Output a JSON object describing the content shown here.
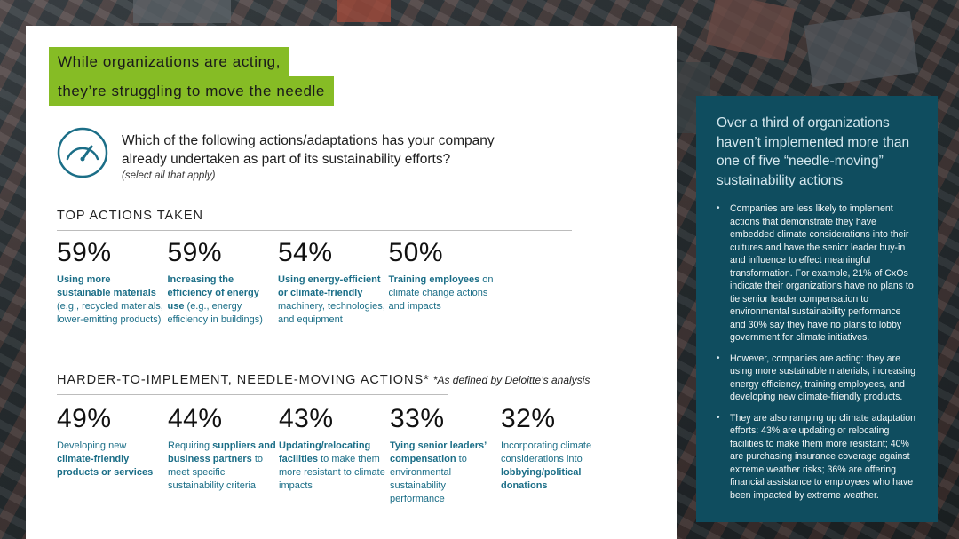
{
  "headline": {
    "line1": "While organizations are acting,",
    "line2": "they’re struggling to move the needle"
  },
  "question": {
    "icon": "gauge-icon",
    "text": "Which of the following actions/adaptations has your company already undertaken as part of its sustainability efforts?",
    "note": "(select all that apply)"
  },
  "top_actions": {
    "title": "TOP ACTIONS TAKEN",
    "items": [
      {
        "pct": "59%",
        "value": 59,
        "desc": [
          {
            "t": "Using more sustainable materials",
            "b": true
          },
          {
            "t": " (e.g., recycled materials, lower-emitting products)",
            "b": false
          }
        ]
      },
      {
        "pct": "59%",
        "value": 59,
        "desc": [
          {
            "t": "Increasing the efficiency of energy use",
            "b": true
          },
          {
            "t": " (e.g., energy efficiency in buildings)",
            "b": false
          }
        ]
      },
      {
        "pct": "54%",
        "value": 54,
        "desc": [
          {
            "t": "Using energy-efficient or climate-friendly",
            "b": true
          },
          {
            "t": " machinery, technologies, and equipment",
            "b": false
          }
        ]
      },
      {
        "pct": "50%",
        "value": 50,
        "desc": [
          {
            "t": "Training employees",
            "b": true
          },
          {
            "t": " on climate change actions and impacts",
            "b": false
          }
        ]
      }
    ]
  },
  "harder_actions": {
    "title": "HARDER-TO-IMPLEMENT, NEEDLE-MOVING ACTIONS*",
    "note": "*As defined by Deloitte’s analysis",
    "items": [
      {
        "pct": "49%",
        "value": 49,
        "desc": [
          {
            "t": "Developing new ",
            "b": false
          },
          {
            "t": "climate-friendly products or services",
            "b": true
          }
        ]
      },
      {
        "pct": "44%",
        "value": 44,
        "desc": [
          {
            "t": "Requiring ",
            "b": false
          },
          {
            "t": "suppliers and business partners",
            "b": true
          },
          {
            "t": " to meet specific sustainability criteria",
            "b": false
          }
        ]
      },
      {
        "pct": "43%",
        "value": 43,
        "desc": [
          {
            "t": "Updating/relocating facilities",
            "b": true
          },
          {
            "t": " to make them more resistant to climate impacts",
            "b": false
          }
        ]
      },
      {
        "pct": "33%",
        "value": 33,
        "desc": [
          {
            "t": "Tying senior leaders’ compensation",
            "b": true
          },
          {
            "t": " to environmental sustainability performance",
            "b": false
          }
        ]
      },
      {
        "pct": "32%",
        "value": 32,
        "desc": [
          {
            "t": "Incorporating climate considerations into ",
            "b": false
          },
          {
            "t": "lobbying/political donations",
            "b": true
          }
        ]
      }
    ]
  },
  "sidebar": {
    "title": "Over a third of organizations haven’t implemented more than one of five “needle-moving” sustainability actions",
    "bullets": [
      "Companies are less likely to implement actions that demonstrate they have embedded climate considerations into their cultures and have the senior leader buy-in and influence to effect meaningful transformation. For example, 21% of CxOs indicate their organizations have no plans to tie senior leader compensation to environmental sustainability performance and 30% say they have no plans to lobby government for climate initiatives.",
      "However, companies are acting: they are using more sustainable materials, increasing energy efficiency, training employees, and developing new climate-friendly products.",
      "They are also ramping up climate adaptation efforts: 43% are updating or relocating facilities to make them more resistant; 40% are purchasing insurance coverage against extreme weather risks; 36% are offering financial assistance to employees who have been impacted by extreme weather."
    ]
  },
  "colors": {
    "accent_green": "#86bc25",
    "teal_text": "#1b6e87",
    "sidebar_bg": "#0f4d5f"
  }
}
